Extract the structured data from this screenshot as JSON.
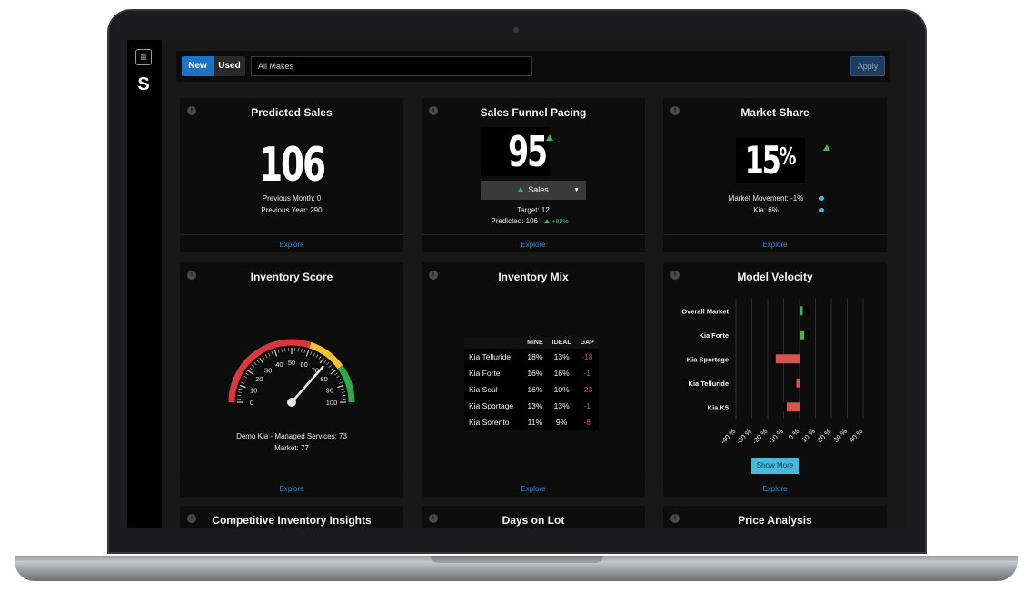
{
  "filter": {
    "new_label": "New",
    "used_label": "Used",
    "makes_value": "All Makes",
    "apply_label": "Apply"
  },
  "predicted_sales": {
    "title": "Predicted Sales",
    "value": "106",
    "previous_month": "Previous Month: 0",
    "previous_year": "Previous Year: 290",
    "explore": "Explore"
  },
  "funnel": {
    "title": "Sales Funnel Pacing",
    "value": "95",
    "metric": "Sales",
    "target": "Target: 12",
    "predicted": "Predicted: 106",
    "change": "+89%",
    "explore": "Explore"
  },
  "market_share": {
    "title": "Market Share",
    "value": "15",
    "unit": "%",
    "movement": "Market Movement: -1%",
    "kia": "Kia: 6%",
    "dot_color": "#3fb6d8",
    "explore": "Explore"
  },
  "inventory_score": {
    "title": "Inventory Score",
    "gauge_value": 73,
    "ticks": [
      "0",
      "10",
      "20",
      "30",
      "40",
      "50",
      "60",
      "70",
      "80",
      "90",
      "100"
    ],
    "managed": "Demo Kia - Managed Services: 73",
    "market": "Market: 77",
    "explore": "Explore"
  },
  "inventory_mix": {
    "title": "Inventory Mix",
    "headers": [
      "",
      "MINE",
      "IDEAL",
      "GAP"
    ],
    "rows": [
      {
        "model": "Kia Telluride",
        "mine": "18%",
        "ideal": "13%",
        "gap": "-18",
        "gap_color": "red"
      },
      {
        "model": "Kia Forte",
        "mine": "16%",
        "ideal": "16%",
        "gap": "-1",
        "gap_color": "green"
      },
      {
        "model": "Kia Soul",
        "mine": "16%",
        "ideal": "10%",
        "gap": "-23",
        "gap_color": "red"
      },
      {
        "model": "Kia Sportage",
        "mine": "13%",
        "ideal": "13%",
        "gap": "-1",
        "gap_color": "green"
      },
      {
        "model": "Kia Sorento",
        "mine": "11%",
        "ideal": "9%",
        "gap": "-8",
        "gap_color": "red"
      }
    ],
    "explore": "Explore"
  },
  "model_velocity": {
    "title": "Model Velocity",
    "show_more": "Show More",
    "explore": "Explore",
    "chart_data": {
      "type": "bar",
      "orientation": "horizontal",
      "categories": [
        "Overall Market",
        "Kia Forte",
        "Kia Sportage",
        "Kia Telluride",
        "Kia K5"
      ],
      "values": [
        2,
        3,
        -15,
        -2,
        -8
      ],
      "xlim": [
        -40,
        40
      ],
      "xticks": [
        "-40 %",
        "-30 %",
        "-20 %",
        "-10 %",
        "0 %",
        "10 %",
        "20 %",
        "30 %",
        "40 %"
      ],
      "positive_color": "#4cae4c",
      "negative_color": "#d9534f",
      "grid": true
    }
  },
  "bottom_cards": {
    "competitive": "Competitive Inventory Insights",
    "days_on_lot": "Days on Lot",
    "price_analysis": "Price Analysis"
  }
}
